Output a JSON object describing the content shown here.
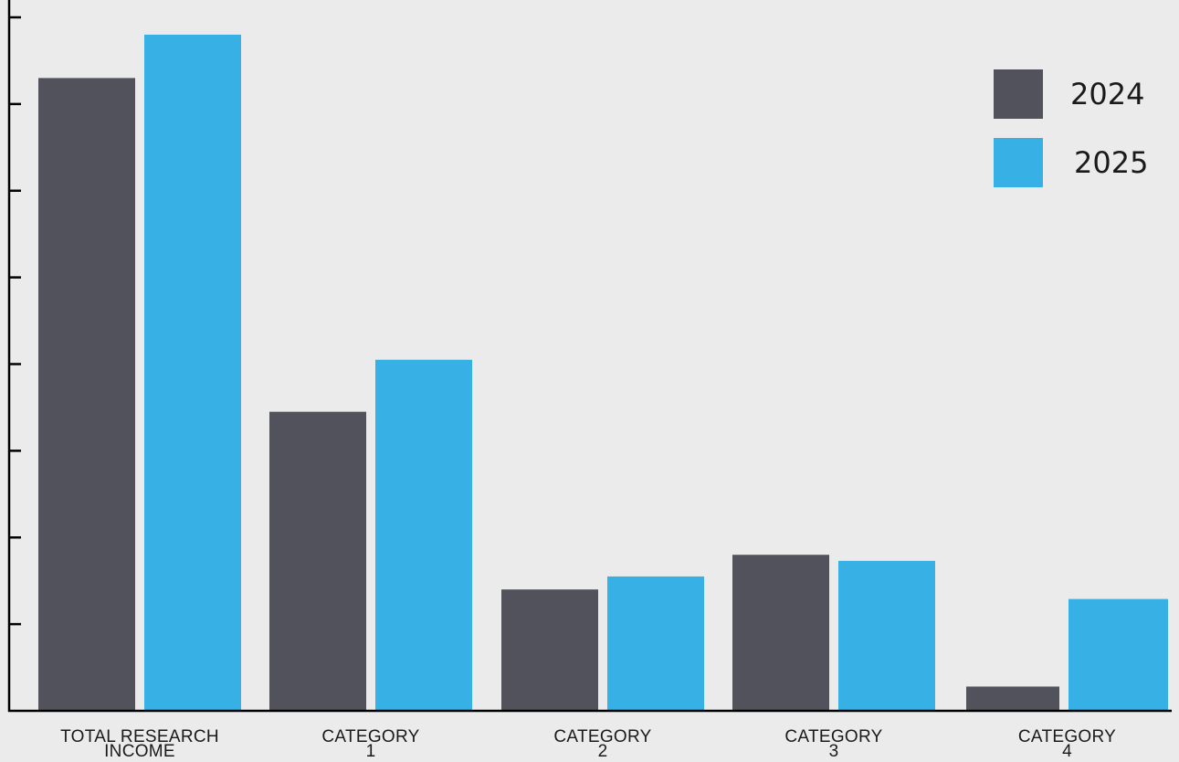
{
  "chart_data": {
    "type": "bar",
    "categories": [
      [
        "TOTAL RESEARCH",
        "INCOME"
      ],
      [
        "CATEGORY",
        "1"
      ],
      [
        "CATEGORY",
        "2"
      ],
      [
        "CATEGORY",
        "3"
      ],
      [
        "CATEGORY",
        "4"
      ]
    ],
    "series": [
      {
        "name": "2024",
        "color": "#52525c",
        "values": [
          7.3,
          3.45,
          1.4,
          1.8,
          0.28
        ]
      },
      {
        "name": "2025",
        "color": "#37b0e5",
        "values": [
          7.8,
          4.05,
          1.55,
          1.73,
          1.29
        ]
      }
    ],
    "ylim": [
      0,
      8.2
    ],
    "yticks": [
      1,
      2,
      3,
      4,
      5,
      6,
      7,
      8
    ],
    "ytick_labels_shown": false,
    "legend_position": "top-right",
    "grid": false,
    "title": "",
    "xlabel": "",
    "ylabel": ""
  }
}
